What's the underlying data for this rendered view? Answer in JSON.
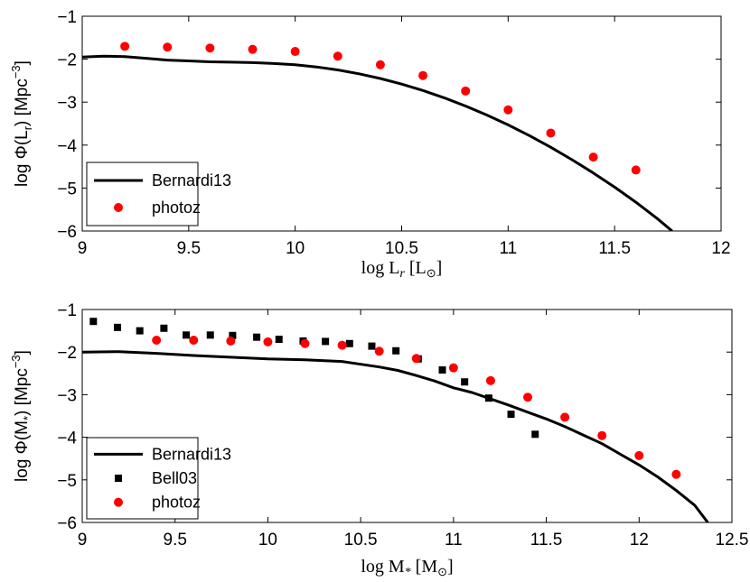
{
  "chart_data": [
    {
      "type": "line",
      "xlabel": "log L_r [L_⊙]",
      "xlabel_parts": {
        "text": "log L",
        "sub": "r",
        "unit_open": " [L",
        "unit_sub": "⊙",
        "unit_close": "]"
      },
      "ylabel": "log Φ(L_r) [Mpc^-3]",
      "ylabel_parts": {
        "text": "log Φ(L",
        "sub": "r",
        "mid": ") [Mpc",
        "sup": "−3",
        "close": "]"
      },
      "xlim": [
        9,
        12
      ],
      "ylim": [
        -6,
        -1
      ],
      "xticks": [
        9,
        9.5,
        10,
        10.5,
        11,
        11.5,
        12
      ],
      "xtick_labels": [
        "9",
        "9.5",
        "10",
        "10.5",
        "11",
        "11.5",
        "12"
      ],
      "yticks": [
        -6,
        -5,
        -4,
        -3,
        -2,
        -1
      ],
      "ytick_labels": [
        "−6",
        "−5",
        "−4",
        "−3",
        "−2",
        "−1"
      ],
      "legend_position": "bottom-left",
      "series": [
        {
          "name": "Bernardi13",
          "kind": "line",
          "color": "#000000",
          "x": [
            9.0,
            9.1,
            9.2,
            9.3,
            9.4,
            9.5,
            9.6,
            9.7,
            9.8,
            9.9,
            10.0,
            10.1,
            10.2,
            10.3,
            10.4,
            10.5,
            10.6,
            10.7,
            10.8,
            10.9,
            11.0,
            11.1,
            11.2,
            11.3,
            11.4,
            11.5,
            11.6,
            11.7,
            11.77
          ],
          "y": [
            -1.95,
            -1.93,
            -1.94,
            -1.98,
            -2.02,
            -2.04,
            -2.06,
            -2.07,
            -2.08,
            -2.1,
            -2.13,
            -2.18,
            -2.25,
            -2.34,
            -2.45,
            -2.58,
            -2.73,
            -2.9,
            -3.09,
            -3.3,
            -3.53,
            -3.78,
            -4.05,
            -4.34,
            -4.65,
            -4.98,
            -5.33,
            -5.71,
            -6.0
          ]
        },
        {
          "name": "photoz",
          "kind": "scatter",
          "marker": "circle",
          "color": "#ff0000",
          "x": [
            9.2,
            9.4,
            9.6,
            9.8,
            10.0,
            10.2,
            10.4,
            10.6,
            10.8,
            11.0,
            11.2,
            11.4,
            11.6
          ],
          "y": [
            -1.7,
            -1.72,
            -1.74,
            -1.77,
            -1.82,
            -1.93,
            -2.13,
            -2.38,
            -2.74,
            -3.18,
            -3.72,
            -4.28,
            -4.58
          ]
        }
      ]
    },
    {
      "type": "line",
      "xlabel": "log M_* [M_⊙]",
      "xlabel_parts": {
        "text": "log M",
        "sub": "*",
        "unit_open": " [M",
        "unit_sub": "⊙",
        "unit_close": "]"
      },
      "ylabel": "log Φ(M_*) [Mpc^-3]",
      "ylabel_parts": {
        "text": "log Φ(M",
        "sub": "*",
        "mid": ") [Mpc",
        "sup": "−3",
        "close": "]"
      },
      "xlim": [
        9,
        12.5
      ],
      "ylim": [
        -6,
        -1
      ],
      "xticks": [
        9,
        9.5,
        10,
        10.5,
        11,
        11.5,
        12,
        12.5
      ],
      "xtick_labels": [
        "9",
        "9.5",
        "10",
        "10.5",
        "11",
        "11.5",
        "12",
        "12.5"
      ],
      "yticks": [
        -6,
        -5,
        -4,
        -3,
        -2,
        -1
      ],
      "ytick_labels": [
        "−6",
        "−5",
        "−4",
        "−3",
        "−2",
        "−1"
      ],
      "legend_position": "bottom-left",
      "series": [
        {
          "name": "Bernardi13",
          "kind": "line",
          "color": "#000000",
          "x": [
            9.0,
            9.2,
            9.4,
            9.6,
            9.8,
            10.0,
            10.2,
            10.4,
            10.6,
            10.7,
            10.8,
            10.9,
            11.0,
            11.1,
            11.2,
            11.3,
            11.4,
            11.5,
            11.6,
            11.7,
            11.8,
            11.9,
            12.0,
            12.1,
            12.2,
            12.3,
            12.37
          ],
          "y": [
            -2.0,
            -1.99,
            -2.03,
            -2.08,
            -2.12,
            -2.16,
            -2.18,
            -2.22,
            -2.35,
            -2.43,
            -2.55,
            -2.68,
            -2.84,
            -2.95,
            -3.1,
            -3.25,
            -3.41,
            -3.57,
            -3.75,
            -3.95,
            -4.15,
            -4.4,
            -4.65,
            -4.93,
            -5.25,
            -5.6,
            -6.0
          ]
        },
        {
          "name": "Bell03",
          "kind": "scatter",
          "marker": "square",
          "color": "#000000",
          "x": [
            9.06,
            9.19,
            9.31,
            9.44,
            9.56,
            9.69,
            9.81,
            9.94,
            10.06,
            10.19,
            10.31,
            10.44,
            10.56,
            10.69,
            10.81,
            10.94,
            11.06,
            11.19,
            11.31,
            11.44
          ],
          "y": [
            -1.28,
            -1.42,
            -1.5,
            -1.44,
            -1.6,
            -1.6,
            -1.61,
            -1.65,
            -1.7,
            -1.74,
            -1.75,
            -1.8,
            -1.86,
            -1.97,
            -2.16,
            -2.42,
            -2.7,
            -3.08,
            -3.46,
            -3.93
          ]
        },
        {
          "name": "photoz",
          "kind": "scatter",
          "marker": "circle",
          "color": "#ff0000",
          "x": [
            9.4,
            9.6,
            9.8,
            10.0,
            10.2,
            10.4,
            10.6,
            10.8,
            11.0,
            11.2,
            11.4,
            11.6,
            11.8,
            12.0,
            12.2
          ],
          "y": [
            -1.72,
            -1.72,
            -1.74,
            -1.76,
            -1.8,
            -1.84,
            -1.98,
            -2.15,
            -2.37,
            -2.67,
            -3.06,
            -3.53,
            -3.96,
            -4.43,
            -4.87
          ]
        }
      ]
    }
  ]
}
